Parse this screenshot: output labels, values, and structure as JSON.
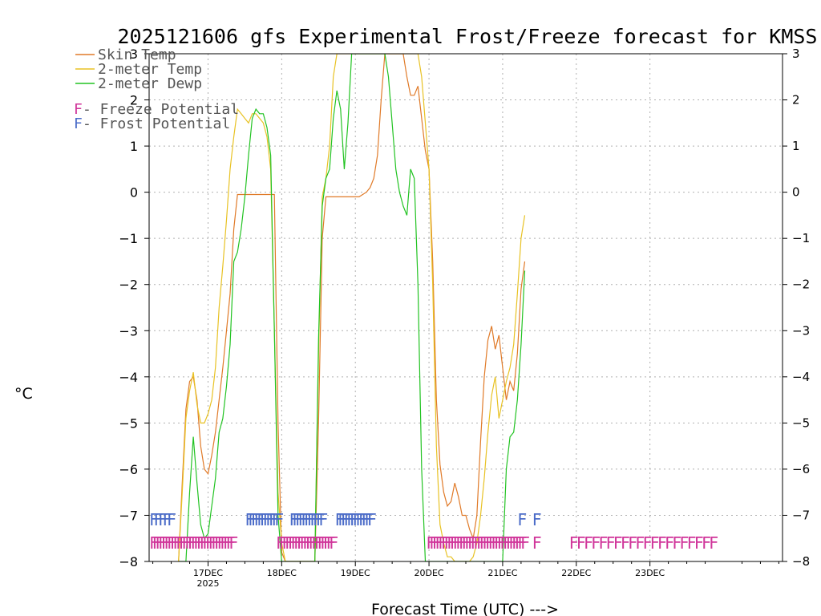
{
  "chart_data": {
    "type": "line",
    "title": "2025121606 gfs Experimental Frost/Freeze forecast for KMSS",
    "ylabel": "°C",
    "xlabel": "Forecast Time (UTC) --->",
    "ylim": [
      -8,
      3
    ],
    "xlim": [
      -0.8,
      7.8
    ],
    "y_ticks": [
      -8,
      -7,
      -6,
      -5,
      -4,
      -3,
      -2,
      -1,
      0,
      1,
      2,
      3
    ],
    "y_tick_labels": [
      "−8",
      "−7",
      "−6",
      "−5",
      "−4",
      "−3",
      "−2",
      "−1",
      "0",
      "1",
      "2",
      "3"
    ],
    "x_ticks": [
      {
        "x": 0,
        "label": "17DEC",
        "sublabel": "2025"
      },
      {
        "x": 1,
        "label": "18DEC",
        "sublabel": ""
      },
      {
        "x": 2,
        "label": "19DEC",
        "sublabel": ""
      },
      {
        "x": 3,
        "label": "20DEC",
        "sublabel": ""
      },
      {
        "x": 4,
        "label": "21DEC",
        "sublabel": ""
      },
      {
        "x": 5,
        "label": "22DEC",
        "sublabel": ""
      },
      {
        "x": 6,
        "label": "23DEC",
        "sublabel": ""
      }
    ],
    "grid": true,
    "legend": {
      "placement": "top-left",
      "items": [
        {
          "label": "Skin Temp",
          "color": "#e07a28",
          "glyph": ""
        },
        {
          "label": "2-meter Temp",
          "color": "#e8c224",
          "glyph": ""
        },
        {
          "label": "2-meter Dewp",
          "color": "#22c322",
          "glyph": ""
        },
        {
          "label": " - Freeze Potential",
          "color": "#d0359a",
          "glyph": "F"
        },
        {
          "label": " - Frost Potential",
          "color": "#4a6bc8",
          "glyph": "F"
        }
      ]
    },
    "series": [
      {
        "name": "Skin Temp",
        "color": "#e07a28",
        "x": [
          -0.4,
          -0.35,
          -0.3,
          -0.25,
          -0.2,
          -0.15,
          -0.1,
          -0.05,
          0,
          0.05,
          0.1,
          0.15,
          0.2,
          0.25,
          0.3,
          0.35,
          0.4,
          0.45,
          0.5,
          0.55,
          0.6,
          0.65,
          0.7,
          0.75,
          0.8,
          0.85,
          0.9,
          0.95,
          1.0,
          1.05,
          1.1,
          1.15,
          1.2,
          1.25,
          1.3,
          1.35,
          1.4,
          1.45,
          1.5,
          1.55,
          1.6,
          1.65,
          1.7,
          1.75,
          1.8,
          1.85,
          1.9,
          1.95,
          2.0,
          2.05,
          2.1,
          2.15,
          2.2,
          2.25,
          2.3,
          2.35,
          2.4,
          2.45,
          2.5,
          2.55,
          2.6,
          2.65,
          2.7,
          2.75,
          2.8,
          2.85,
          2.9,
          2.95,
          3.0,
          3.05,
          3.1,
          3.15,
          3.2,
          3.25,
          3.3,
          3.35,
          3.4,
          3.45,
          3.5,
          3.55,
          3.6,
          3.65,
          3.7,
          3.75,
          3.8,
          3.85,
          3.9,
          3.95,
          4.0,
          4.05,
          4.1,
          4.15,
          4.2,
          4.25,
          4.3
        ],
        "values": [
          -8,
          -6.3,
          -4.7,
          -4.1,
          -4.0,
          -4.5,
          -5.5,
          -6.0,
          -6.1,
          -5.7,
          -5.2,
          -4.5,
          -3.8,
          -3.0,
          -2.2,
          -0.8,
          -0.05,
          -0.05,
          -0.05,
          -0.05,
          -0.05,
          -0.05,
          -0.05,
          -0.05,
          -0.05,
          -0.05,
          -0.05,
          -5.0,
          -7.8,
          -8,
          -8,
          -8,
          -8,
          -8,
          -8,
          -8,
          -8,
          -8,
          -5.0,
          -1.0,
          -0.1,
          -0.1,
          -0.1,
          -0.1,
          -0.1,
          -0.1,
          -0.1,
          -0.1,
          -0.1,
          -0.1,
          -0.05,
          0,
          0.1,
          0.3,
          0.8,
          2.0,
          3,
          3,
          3,
          3,
          3,
          3,
          2.5,
          2.1,
          2.1,
          2.3,
          1.6,
          0.9,
          0.5,
          -1.5,
          -4.5,
          -5.9,
          -6.5,
          -6.8,
          -6.7,
          -6.3,
          -6.6,
          -7.0,
          -7.0,
          -7.3,
          -7.5,
          -7.0,
          -5.4,
          -4.0,
          -3.2,
          -2.9,
          -3.4,
          -3.1,
          -3.8,
          -4.5,
          -4.1,
          -4.3,
          -3.5,
          -2.1,
          -1.5
        ]
      },
      {
        "name": "2-meter Temp",
        "color": "#e8c224",
        "x": [
          -0.4,
          -0.35,
          -0.3,
          -0.25,
          -0.2,
          -0.15,
          -0.1,
          -0.05,
          0,
          0.05,
          0.1,
          0.15,
          0.2,
          0.25,
          0.3,
          0.35,
          0.4,
          0.45,
          0.5,
          0.55,
          0.6,
          0.65,
          0.7,
          0.75,
          0.8,
          0.85,
          0.9,
          0.95,
          1.0,
          1.05,
          1.1,
          1.15,
          1.2,
          1.25,
          1.3,
          1.35,
          1.4,
          1.45,
          1.5,
          1.55,
          1.6,
          1.65,
          1.7,
          1.75,
          1.8,
          1.85,
          1.9,
          1.95,
          2.0,
          2.05,
          2.1,
          2.15,
          2.2,
          2.25,
          2.3,
          2.35,
          2.4,
          2.45,
          2.5,
          2.55,
          2.6,
          2.65,
          2.7,
          2.75,
          2.8,
          2.85,
          2.9,
          2.95,
          3.0,
          3.05,
          3.1,
          3.15,
          3.2,
          3.25,
          3.3,
          3.35,
          3.4,
          3.45,
          3.5,
          3.55,
          3.6,
          3.65,
          3.7,
          3.75,
          3.8,
          3.85,
          3.9,
          3.95,
          4.0,
          4.05,
          4.1,
          4.15,
          4.2,
          4.25,
          4.3
        ],
        "values": [
          -8,
          -6.5,
          -4.9,
          -4.3,
          -3.9,
          -4.6,
          -5.0,
          -5.0,
          -4.8,
          -4.5,
          -3.8,
          -2.5,
          -1.6,
          -0.6,
          0.5,
          1.2,
          1.8,
          1.7,
          1.6,
          1.5,
          1.7,
          1.7,
          1.6,
          1.5,
          1.2,
          0.5,
          -3.0,
          -6.5,
          -7.6,
          -8,
          -8,
          -8,
          -8,
          -8,
          -8,
          -8,
          -8,
          -8,
          -3.5,
          -0.1,
          0.3,
          1.0,
          2.5,
          3,
          3,
          3,
          3,
          3,
          3,
          3,
          3,
          3,
          3,
          3,
          3,
          3,
          3,
          3,
          3,
          3,
          3,
          3,
          3,
          3,
          3,
          3,
          2.5,
          1.5,
          0.5,
          -2.0,
          -5.5,
          -7.2,
          -7.6,
          -7.9,
          -7.9,
          -8,
          -8,
          -8,
          -8,
          -8,
          -7.9,
          -7.6,
          -7.0,
          -6.2,
          -5.2,
          -4.4,
          -4.0,
          -4.9,
          -4.5,
          -4.1,
          -3.8,
          -3.3,
          -2.2,
          -1.0,
          -0.5
        ]
      },
      {
        "name": "2-meter Dewp",
        "color": "#22c322",
        "x": [
          -0.4,
          -0.35,
          -0.3,
          -0.25,
          -0.2,
          -0.15,
          -0.1,
          -0.05,
          0,
          0.05,
          0.1,
          0.15,
          0.2,
          0.25,
          0.3,
          0.35,
          0.4,
          0.45,
          0.5,
          0.55,
          0.6,
          0.65,
          0.7,
          0.75,
          0.8,
          0.85,
          0.9,
          0.95,
          1.0,
          1.05,
          1.1,
          1.15,
          1.2,
          1.25,
          1.3,
          1.35,
          1.4,
          1.45,
          1.5,
          1.55,
          1.6,
          1.65,
          1.7,
          1.75,
          1.8,
          1.85,
          1.9,
          1.95,
          2.0,
          2.05,
          2.1,
          2.15,
          2.2,
          2.25,
          2.3,
          2.35,
          2.4,
          2.45,
          2.5,
          2.55,
          2.6,
          2.65,
          2.7,
          2.75,
          2.8,
          2.85,
          2.9,
          2.95,
          3.0,
          3.05,
          3.1,
          3.15,
          3.2,
          3.25,
          3.3,
          3.35,
          3.4,
          3.45,
          3.5,
          3.55,
          3.6,
          3.65,
          3.7,
          3.75,
          3.8,
          3.85,
          3.9,
          3.95,
          4.0,
          4.05,
          4.1,
          4.15,
          4.2,
          4.25,
          4.3
        ],
        "values": [
          -8,
          -8,
          -8,
          -6.5,
          -5.3,
          -6.3,
          -7.2,
          -7.5,
          -7.4,
          -6.8,
          -6.2,
          -5.2,
          -4.9,
          -4.2,
          -3.3,
          -1.5,
          -1.3,
          -0.8,
          -0.1,
          0.8,
          1.6,
          1.8,
          1.7,
          1.7,
          1.4,
          0.8,
          -3.0,
          -7.0,
          -8,
          -8,
          -8,
          -8,
          -8,
          -8,
          -8,
          -8,
          -8,
          -8,
          -3.2,
          -0.3,
          0.3,
          0.5,
          1.6,
          2.2,
          1.8,
          0.5,
          1.5,
          3,
          3,
          3,
          3,
          3,
          3,
          3,
          3,
          3,
          3,
          2.5,
          1.5,
          0.5,
          0,
          -0.3,
          -0.5,
          0.5,
          0.3,
          -2.0,
          -6.0,
          -8,
          -8,
          -8,
          -8,
          -8,
          -8,
          -8,
          -8,
          -8,
          -8,
          -8,
          -8,
          -8,
          -8,
          -8,
          -8,
          -8,
          -8,
          -8,
          -8,
          -8,
          -8,
          -6.0,
          -5.3,
          -5.2,
          -4.5,
          -3.3,
          -1.7
        ]
      }
    ],
    "freeze_marks": {
      "color": "#d0359a",
      "glyph": "F",
      "y": -7.6,
      "x": [
        -0.8,
        -0.76,
        -0.72,
        -0.68,
        -0.64,
        -0.6,
        -0.56,
        -0.52,
        -0.48,
        -0.44,
        -0.4,
        -0.36,
        -0.32,
        -0.28,
        -0.24,
        -0.2,
        -0.16,
        -0.12,
        -0.08,
        -0.04,
        0.0,
        0.04,
        0.08,
        0.12,
        0.16,
        0.2,
        0.24,
        0.28,
        0.92,
        0.96,
        1.0,
        1.04,
        1.08,
        1.12,
        1.16,
        1.2,
        1.24,
        1.28,
        1.32,
        1.36,
        1.4,
        1.44,
        1.48,
        1.52,
        1.56,
        1.6,
        1.64,
        2.96,
        3.0,
        3.04,
        3.08,
        3.12,
        3.16,
        3.2,
        3.24,
        3.28,
        3.32,
        3.36,
        3.4,
        3.44,
        3.48,
        3.52,
        3.56,
        3.6,
        3.64,
        3.68,
        3.72,
        3.76,
        3.8,
        3.84,
        3.88,
        3.92,
        3.96,
        4.0,
        4.04,
        4.08,
        4.12,
        4.16,
        4.2,
        4.24,
        4.4,
        4.9,
        5.0,
        5.1,
        5.2,
        5.3,
        5.4,
        5.5,
        5.6,
        5.7,
        5.8,
        5.9,
        6.0,
        6.1,
        6.2,
        6.3,
        6.4,
        6.5,
        6.6,
        6.7,
        6.8
      ]
    },
    "frost_marks": {
      "color": "#4a6bc8",
      "glyph": "F",
      "y": -7.1,
      "x": [
        -0.8,
        -0.74,
        -0.68,
        -0.62,
        -0.56,
        0.5,
        0.54,
        0.58,
        0.62,
        0.66,
        0.7,
        0.74,
        0.78,
        0.82,
        0.86,
        0.9,
        1.1,
        1.14,
        1.18,
        1.22,
        1.26,
        1.3,
        1.34,
        1.38,
        1.42,
        1.46,
        1.5,
        1.72,
        1.76,
        1.8,
        1.84,
        1.88,
        1.92,
        1.96,
        2.0,
        2.04,
        2.08,
        2.12,
        2.16,
        4.2,
        4.4
      ]
    }
  }
}
